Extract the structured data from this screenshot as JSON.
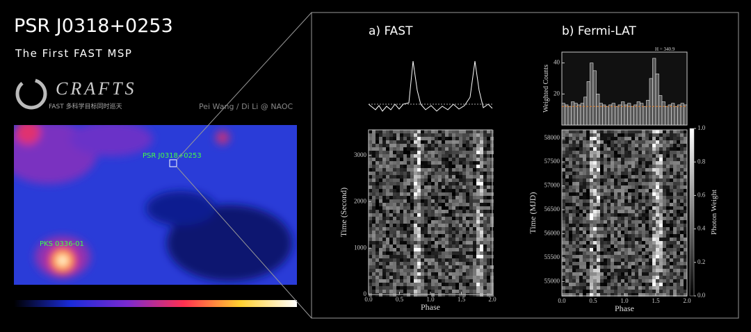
{
  "header": {
    "title": "PSR J0318+0253",
    "subtitle": "The First FAST MSP",
    "logo": "CRAFTS",
    "logo_tagline": "FAST 多科学目标同时巡天",
    "credit": "Pei Wang / Di Li @ NAOC"
  },
  "sky_map": {
    "source_labels": [
      "PSR J0318+0253",
      "PKS 0336-01"
    ]
  },
  "panel_a": {
    "label": "a)  FAST",
    "xlabel": "Phase",
    "ylabel": "Time (Second)",
    "xlim": [
      0,
      2
    ],
    "xticks": [
      {
        "value": 0,
        "label": "0.0"
      },
      {
        "value": 0.5,
        "label": "0.5"
      },
      {
        "value": 1,
        "label": "1.0"
      },
      {
        "value": 1.5,
        "label": "1.5"
      },
      {
        "value": 2,
        "label": "2.0"
      }
    ],
    "ylim": [
      0,
      3550
    ],
    "yticks": [
      0,
      1000,
      2000,
      3000
    ]
  },
  "panel_b": {
    "label": "b)  Fermi-LAT",
    "xlabel": "Phase",
    "ylabel": "Time (MJD)",
    "top_ylabel": "Weighted Counts",
    "annotation": "H = 340.9",
    "xlim": [
      0,
      2
    ],
    "xticks": [
      {
        "value": 0,
        "label": "0.0"
      },
      {
        "value": 0.5,
        "label": "0.5"
      },
      {
        "value": 1,
        "label": "1.0"
      },
      {
        "value": 1.5,
        "label": "1.5"
      },
      {
        "value": 2,
        "label": "2.0"
      }
    ],
    "ylim": [
      54700,
      58170
    ],
    "yticks": [
      55000,
      55500,
      56000,
      56500,
      57000,
      57500,
      58000
    ],
    "top_ylim": [
      0,
      47
    ],
    "top_yticks": [
      20,
      40
    ],
    "profile": [
      14,
      13,
      12,
      15,
      14,
      13,
      14,
      18,
      28,
      40,
      35,
      20,
      14,
      13,
      12,
      13,
      14,
      12,
      13,
      15,
      13,
      14,
      12,
      13,
      15,
      14,
      12,
      16,
      30,
      43,
      33,
      19,
      15,
      12,
      13,
      14,
      12,
      13,
      14,
      13
    ],
    "background_level": 12,
    "colorbar_label": "Photon Weight",
    "colorbar_lim": [
      0,
      1
    ],
    "colorbar_ticks": [
      {
        "value": 0,
        "label": "0.0"
      },
      {
        "value": 0.2,
        "label": "0.2"
      },
      {
        "value": 0.4,
        "label": "0.4"
      },
      {
        "value": 0.6,
        "label": "0.6"
      },
      {
        "value": 0.8,
        "label": "0.8"
      },
      {
        "value": 1,
        "label": "1.0"
      }
    ]
  }
}
